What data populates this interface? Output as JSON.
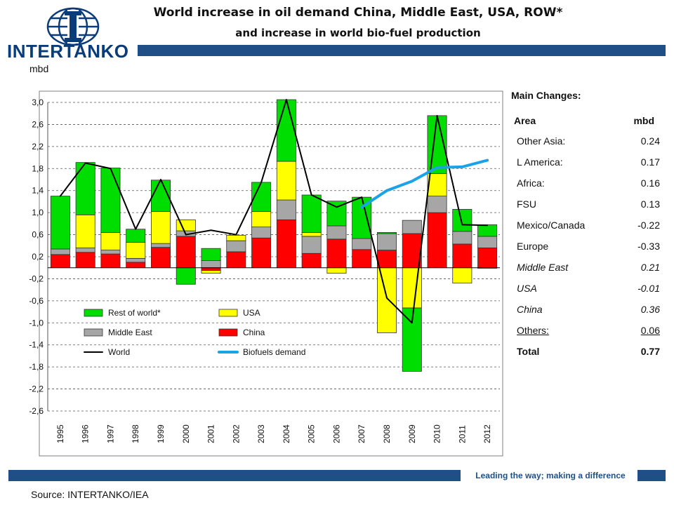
{
  "header": {
    "logo_text": "INTERTANKO",
    "title": "World increase in oil demand China, Middle East, USA, ROW*",
    "subtitle": "and increase in world bio-fuel production"
  },
  "chart_data": {
    "type": "bar",
    "subtype": "stacked-bar-with-lines",
    "ylabel": "mbd",
    "ylim": [
      -2.6,
      3.2
    ],
    "yticks": [
      "3,0",
      "2,6",
      "2,2",
      "1,8",
      "1,4",
      "1,0",
      "0,6",
      "0,2",
      "-0,2",
      "-0,6",
      "-1,0",
      "-1,4",
      "-1,8",
      "-2,2",
      "-2,6"
    ],
    "ytick_values": [
      3.0,
      2.6,
      2.2,
      1.8,
      1.4,
      1.0,
      0.6,
      0.2,
      -0.2,
      -0.6,
      -1.0,
      -1.4,
      -1.8,
      -2.2,
      -2.6
    ],
    "categories": [
      "1995",
      "1996",
      "1997",
      "1998",
      "1999",
      "2000",
      "2001",
      "2002",
      "2003",
      "2004",
      "2005",
      "2006",
      "2007",
      "2008",
      "2009",
      "2010",
      "2011",
      "2012"
    ],
    "series": [
      {
        "name": "China",
        "color": "#ff0000",
        "values": [
          0.24,
          0.28,
          0.25,
          0.1,
          0.37,
          0.57,
          -0.05,
          0.29,
          0.54,
          0.87,
          0.26,
          0.52,
          0.33,
          0.32,
          0.62,
          1.0,
          0.43,
          0.36
        ]
      },
      {
        "name": "Middle East",
        "color": "#a6a6a6",
        "values": [
          0.1,
          0.08,
          0.07,
          0.07,
          0.07,
          0.1,
          0.13,
          0.2,
          0.2,
          0.36,
          0.31,
          0.24,
          0.2,
          0.3,
          0.24,
          0.3,
          0.23,
          0.21
        ]
      },
      {
        "name": "USA",
        "color": "#ffff00",
        "values": [
          0.0,
          0.6,
          0.32,
          0.29,
          0.58,
          0.2,
          -0.05,
          0.1,
          0.28,
          0.7,
          0.07,
          -0.1,
          0.0,
          -1.18,
          -0.73,
          0.41,
          -0.28,
          -0.01
        ]
      },
      {
        "name": "Rest of world*",
        "color": "#00dd00",
        "values": [
          0.96,
          0.95,
          1.17,
          0.24,
          0.57,
          -0.3,
          0.22,
          0.0,
          0.53,
          1.12,
          0.68,
          0.45,
          0.75,
          0.02,
          -1.15,
          1.05,
          0.4,
          0.21
        ]
      }
    ],
    "lines": [
      {
        "name": "World",
        "color": "#000000",
        "categories_from": 0,
        "values": [
          1.3,
          1.9,
          1.8,
          0.7,
          1.6,
          0.6,
          0.68,
          0.6,
          1.55,
          3.05,
          1.32,
          1.1,
          1.28,
          -0.55,
          -1.0,
          2.76,
          0.78,
          0.77
        ]
      },
      {
        "name": "Biofuels demand",
        "color": "#1aa3e8",
        "categories_from": 12,
        "values": [
          1.1,
          1.4,
          1.57,
          1.82,
          1.83,
          1.95
        ]
      }
    ],
    "legend": [
      {
        "name": "Rest of world*",
        "type": "box",
        "color": "#00dd00"
      },
      {
        "name": "USA",
        "type": "box",
        "color": "#ffff00"
      },
      {
        "name": "Middle East",
        "type": "box",
        "color": "#a6a6a6"
      },
      {
        "name": "China",
        "type": "box",
        "color": "#ff0000"
      },
      {
        "name": "World",
        "type": "line",
        "color": "#000000"
      },
      {
        "name": "Biofuels demand",
        "type": "line",
        "color": "#1aa3e8"
      }
    ],
    "legend_placement": "bottom-left inside",
    "grid": "horizontal dashed"
  },
  "changes": {
    "heading": "Main Changes:",
    "col_area": "Area",
    "col_mbd": "mbd",
    "rows": [
      {
        "area": "Other Asia:",
        "mbd": "0.24"
      },
      {
        "area": "L America:",
        "mbd": "0.17"
      },
      {
        "area": "Africa:",
        "mbd": "0.16"
      },
      {
        "area": "FSU",
        "mbd": "0.13"
      },
      {
        "area": "Mexico/Canada",
        "mbd": "-0.22"
      },
      {
        "area": "Europe",
        "mbd": "-0.33"
      },
      {
        "area": "Middle East",
        "mbd": "0.21"
      },
      {
        "area": "USA",
        "mbd": "-0.01"
      },
      {
        "area": "China",
        "mbd": "0.36"
      },
      {
        "area": "Others:",
        "mbd": "0.06"
      },
      {
        "area": "Total",
        "mbd": "0.77"
      }
    ]
  },
  "footer": {
    "tagline": "Leading the way; making a difference",
    "source": "Source: INTERTANKO/IEA"
  }
}
